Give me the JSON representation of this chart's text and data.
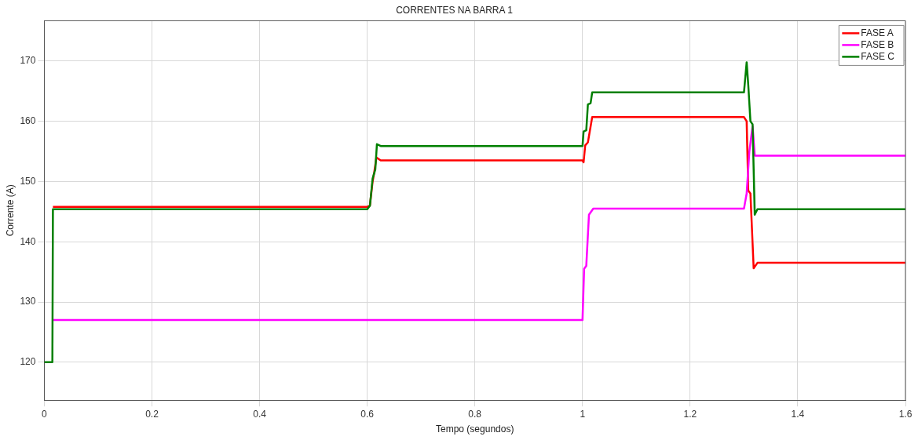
{
  "chart_data": {
    "type": "line",
    "title": "CORRENTES NA BARRA 1",
    "xlabel": "Tempo (segundos)",
    "ylabel": "Corrente (A)",
    "xlim": [
      0,
      1.6
    ],
    "xticks": [
      0,
      0.2,
      0.4,
      0.6,
      0.8,
      1,
      1.2,
      1.4,
      1.6
    ],
    "ylim": [
      113.7,
      176.7
    ],
    "yticks": [
      120,
      130,
      140,
      150,
      160,
      170
    ],
    "grid": true,
    "legend": "top right",
    "marker": "none",
    "line_style": "solid",
    "series": [
      {
        "name": "FASE A",
        "color": "#ff0000",
        "x": [
          0.016,
          0.6,
          0.605,
          0.61,
          0.613,
          0.617,
          0.625,
          1.0,
          1.002,
          1.005,
          1.01,
          1.018,
          1.3,
          1.305,
          1.308,
          1.312,
          1.318,
          1.325,
          1.6
        ],
        "values": [
          145.8,
          145.8,
          146,
          150,
          151.5,
          154,
          153.5,
          153.5,
          153.2,
          156,
          156.5,
          160.7,
          160.7,
          160,
          148.5,
          148,
          135.6,
          136.5,
          136.5
        ]
      },
      {
        "name": "FASE B",
        "color": "#ff00ff",
        "x": [
          0.016,
          1.0,
          1.003,
          1.007,
          1.012,
          1.02,
          1.3,
          1.305,
          1.31,
          1.316,
          1.32,
          1.6
        ],
        "values": [
          127,
          127,
          135.5,
          136,
          144.5,
          145.5,
          145.5,
          148,
          155,
          159.2,
          154.3,
          154.3
        ]
      },
      {
        "name": "FASE C",
        "color": "#008000",
        "x": [
          0,
          0.015,
          0.016,
          0.6,
          0.605,
          0.61,
          0.615,
          0.618,
          0.625,
          1.0,
          1.002,
          1.007,
          1.01,
          1.015,
          1.018,
          1.3,
          1.305,
          1.308,
          1.312,
          1.316,
          1.32,
          1.325,
          1.6
        ],
        "values": [
          120,
          120,
          145.4,
          145.4,
          146,
          150.5,
          152,
          156.2,
          155.9,
          155.9,
          158.3,
          158.5,
          162.8,
          163,
          164.8,
          164.8,
          169.8,
          166,
          160,
          159.5,
          144.5,
          145.4,
          145.4
        ]
      }
    ]
  }
}
